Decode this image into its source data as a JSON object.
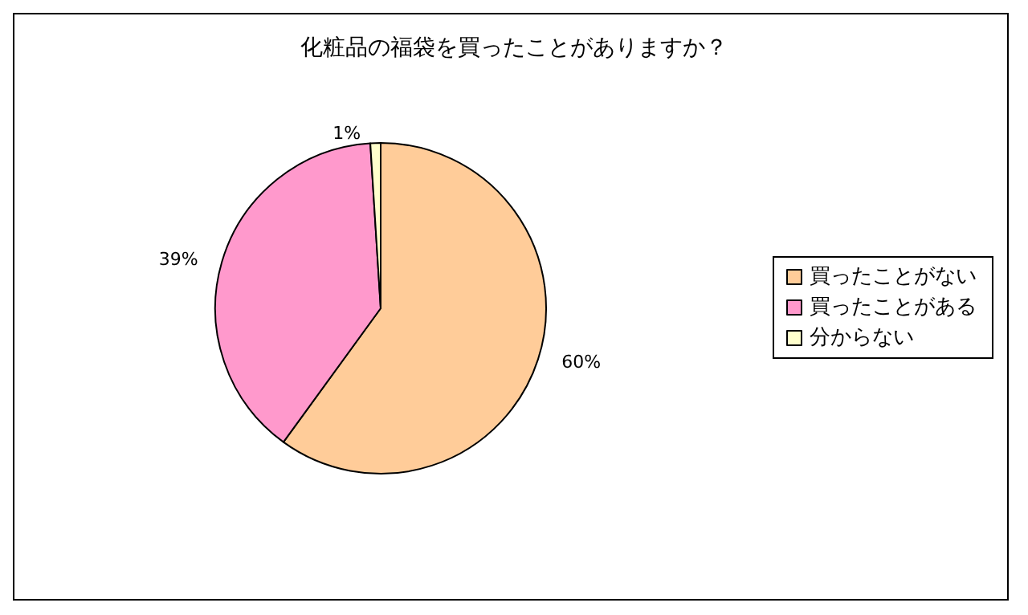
{
  "chart_data": {
    "type": "pie",
    "title": "化粧品の福袋を買ったことがありますか？",
    "categories": [
      "買ったことがない",
      "買ったことがある",
      "分からない"
    ],
    "values": [
      60,
      39,
      1
    ],
    "colors": [
      "#ffcc99",
      "#ff99cc",
      "#ffffcc"
    ],
    "value_labels": [
      "60%",
      "39%",
      "1%"
    ],
    "legend": "right"
  }
}
